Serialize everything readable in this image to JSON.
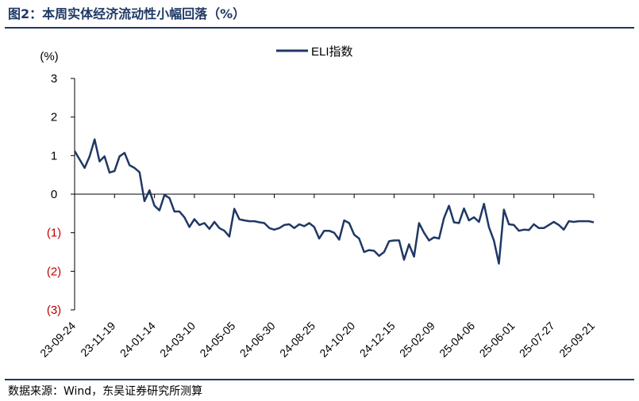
{
  "figure": {
    "title": "图2：本周实体经济流动性小幅回落（%）",
    "source": "数据来源：Wind，东吴证券研究所测算"
  },
  "colors": {
    "series": "#1f3864",
    "axis": "#000000",
    "negative_tick": "#c00000",
    "rule": "#1f3864"
  },
  "chart_data": {
    "type": "line",
    "title": "",
    "ylabel": "(%)",
    "xlabel": "",
    "ylim": [
      -3,
      3
    ],
    "grid": false,
    "legend_position": "top-center",
    "y_ticks": [
      {
        "value": 3,
        "label": "3"
      },
      {
        "value": 2,
        "label": "2"
      },
      {
        "value": 1,
        "label": "1"
      },
      {
        "value": 0,
        "label": "0"
      },
      {
        "value": -1,
        "label": "(1)"
      },
      {
        "value": -2,
        "label": "(2)"
      },
      {
        "value": -3,
        "label": "(3)"
      }
    ],
    "x_ticks": [
      {
        "index": 0,
        "label": "23-09-24"
      },
      {
        "index": 8,
        "label": "23-11-19"
      },
      {
        "index": 16,
        "label": "24-01-14"
      },
      {
        "index": 24,
        "label": "24-03-10"
      },
      {
        "index": 32,
        "label": "24-05-05"
      },
      {
        "index": 40,
        "label": "24-06-30"
      },
      {
        "index": 48,
        "label": "24-08-25"
      },
      {
        "index": 56,
        "label": "24-10-20"
      },
      {
        "index": 64,
        "label": "24-12-15"
      },
      {
        "index": 72,
        "label": "25-02-09"
      },
      {
        "index": 80,
        "label": "25-04-06"
      },
      {
        "index": 88,
        "label": "25-06-01"
      },
      {
        "index": 96,
        "label": "25-07-27"
      },
      {
        "index": 104,
        "label": "25-09-21"
      }
    ],
    "series": [
      {
        "name": "ELI指数",
        "values": [
          1.12,
          0.9,
          0.68,
          0.98,
          1.42,
          0.85,
          0.98,
          0.56,
          0.6,
          0.98,
          1.07,
          0.75,
          0.68,
          0.57,
          -0.18,
          0.1,
          -0.3,
          -0.42,
          -0.02,
          -0.1,
          -0.45,
          -0.45,
          -0.6,
          -0.85,
          -0.65,
          -0.8,
          -0.75,
          -0.9,
          -0.72,
          -0.88,
          -0.95,
          -1.1,
          -0.38,
          -0.65,
          -0.68,
          -0.7,
          -0.7,
          -0.73,
          -0.75,
          -0.88,
          -0.92,
          -0.88,
          -0.8,
          -0.78,
          -0.88,
          -0.78,
          -0.83,
          -0.75,
          -0.85,
          -1.15,
          -0.95,
          -0.95,
          -1.0,
          -1.18,
          -0.68,
          -0.75,
          -1.05,
          -1.15,
          -1.5,
          -1.45,
          -1.47,
          -1.6,
          -1.5,
          -1.22,
          -1.2,
          -1.2,
          -1.7,
          -1.3,
          -1.62,
          -0.75,
          -1.0,
          -1.2,
          -1.12,
          -1.15,
          -0.62,
          -0.3,
          -0.73,
          -0.75,
          -0.37,
          -0.68,
          -0.6,
          -0.72,
          -0.25,
          -0.85,
          -1.2,
          -1.8,
          -0.4,
          -0.78,
          -0.8,
          -0.95,
          -0.92,
          -0.93,
          -0.78,
          -0.88,
          -0.88,
          -0.8,
          -0.72,
          -0.8,
          -0.92,
          -0.7,
          -0.72,
          -0.7,
          -0.7,
          -0.7,
          -0.73
        ]
      }
    ]
  }
}
